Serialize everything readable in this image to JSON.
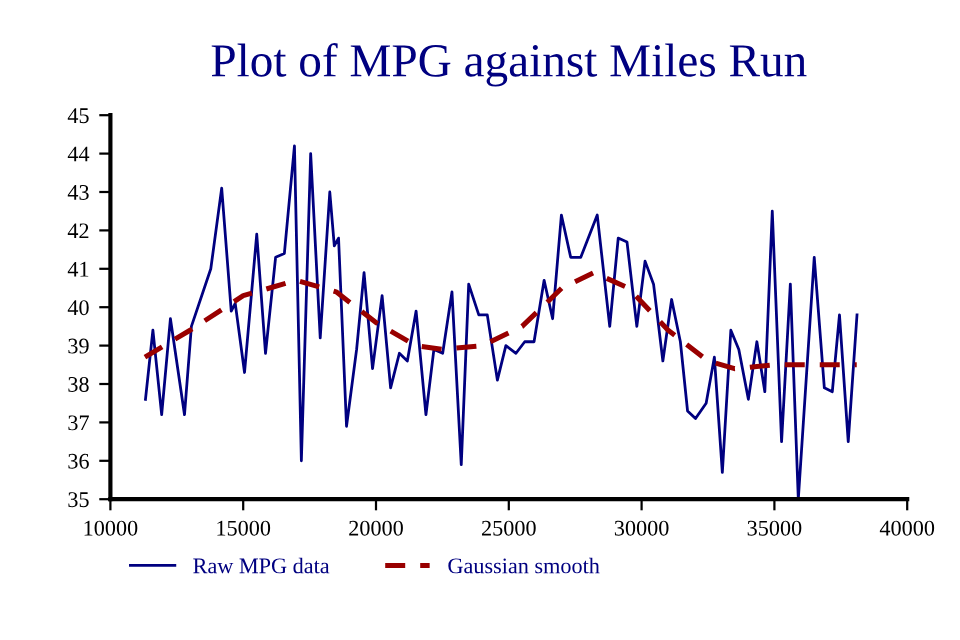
{
  "chart_data": {
    "type": "line",
    "title": "Plot of MPG against Miles Run",
    "xlim": [
      10000,
      40000
    ],
    "xticks": [
      10000,
      15000,
      20000,
      25000,
      30000,
      35000,
      40000
    ],
    "ylim": [
      35,
      45
    ],
    "yticks": [
      35,
      36,
      37,
      38,
      39,
      40,
      41,
      42,
      43,
      44,
      45
    ],
    "grid": false,
    "legend": "bottom",
    "series": [
      {
        "name": "Raw MPG data",
        "color": "#000080",
        "line_style": "solid",
        "x": [
          11320,
          11600,
          11930,
          12260,
          12790,
          13050,
          13780,
          14190,
          14550,
          14700,
          15050,
          15510,
          15840,
          16220,
          16550,
          16930,
          17190,
          17540,
          17900,
          18260,
          18430,
          18590,
          18890,
          19270,
          19550,
          19870,
          20230,
          20550,
          20880,
          21180,
          21510,
          21880,
          22180,
          22510,
          22860,
          23210,
          23490,
          23870,
          24190,
          24570,
          24890,
          25270,
          25600,
          25950,
          26330,
          26650,
          26980,
          27330,
          27710,
          28330,
          28800,
          29120,
          29450,
          29820,
          30130,
          30450,
          30800,
          31130,
          31460,
          31730,
          32030,
          32430,
          32740,
          33040,
          33360,
          33660,
          34020,
          34340,
          34640,
          34920,
          35270,
          35600,
          35900,
          36500,
          36880,
          37180,
          37450,
          37780,
          38110
        ],
        "values": [
          37.6,
          39.4,
          37.2,
          39.7,
          37.2,
          39.5,
          41.0,
          43.1,
          39.9,
          40.1,
          38.3,
          41.9,
          38.8,
          41.3,
          41.4,
          44.2,
          36.0,
          44.0,
          39.2,
          43.0,
          41.6,
          41.8,
          36.9,
          38.9,
          40.9,
          38.4,
          40.3,
          37.9,
          38.8,
          38.6,
          39.9,
          37.2,
          38.9,
          38.8,
          40.4,
          35.9,
          40.6,
          39.8,
          39.8,
          38.1,
          39.0,
          38.8,
          39.1,
          39.1,
          40.7,
          39.7,
          42.4,
          41.3,
          41.3,
          42.4,
          39.5,
          41.8,
          41.7,
          39.5,
          41.2,
          40.6,
          38.6,
          40.2,
          39.1,
          37.3,
          37.1,
          37.5,
          38.7,
          35.7,
          39.4,
          38.9,
          37.6,
          39.1,
          37.8,
          42.5,
          36.5,
          40.6,
          35.0,
          41.3,
          37.9,
          37.8,
          39.8,
          36.5,
          39.8
        ]
      },
      {
        "name": "Gaussian smooth",
        "color": "#990000",
        "line_style": "dashed",
        "x": [
          11300,
          13000,
          15000,
          17000,
          18500,
          20000,
          21500,
          22500,
          24000,
          25500,
          27000,
          28200,
          29500,
          31000,
          32500,
          33500,
          35000,
          36500,
          38100
        ],
        "values": [
          38.7,
          39.4,
          40.3,
          40.7,
          40.4,
          39.6,
          39.0,
          38.9,
          39.0,
          39.5,
          40.5,
          40.9,
          40.5,
          39.4,
          38.6,
          38.4,
          38.5,
          38.5,
          38.5
        ]
      }
    ]
  }
}
